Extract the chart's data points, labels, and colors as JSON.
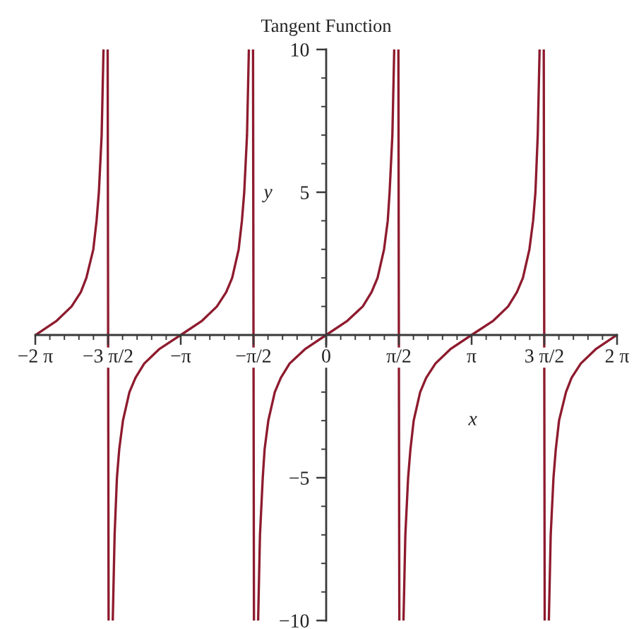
{
  "chart_data": {
    "type": "line",
    "title": "Tangent Function",
    "xlabel": "x",
    "ylabel": "y",
    "line_style": "solid",
    "x": [
      -6.28,
      -5.82,
      -5.5,
      -5.3,
      -5.18,
      -5.03,
      -4.96,
      -4.91,
      -4.85,
      -4.81,
      -4.76,
      -4.72,
      -4.7,
      -4.66,
      -4.61,
      -4.57,
      -4.52,
      -4.47,
      -4.39,
      -4.25,
      -4.12,
      -3.93,
      -3.61,
      -3.14,
      -2.68,
      -2.36,
      -2.16,
      -2.03,
      -1.89,
      -1.82,
      -1.77,
      -1.71,
      -1.67,
      -1.62,
      -1.58,
      -1.56,
      -1.52,
      -1.47,
      -1.43,
      -1.37,
      -1.33,
      -1.25,
      -1.11,
      -0.98,
      -0.79,
      -0.46,
      0,
      0.46,
      0.79,
      0.98,
      1.11,
      1.25,
      1.33,
      1.37,
      1.43,
      1.47,
      1.52,
      1.56,
      1.58,
      1.62,
      1.67,
      1.71,
      1.77,
      1.82,
      1.89,
      2.03,
      2.16,
      2.36,
      2.68,
      3.14,
      3.61,
      3.93,
      4.12,
      4.25,
      4.39,
      4.47,
      4.52,
      4.57,
      4.61,
      4.66,
      4.7,
      4.72,
      4.76,
      4.81,
      4.85,
      4.91,
      4.96,
      5.03,
      5.18,
      5.3,
      5.5,
      5.82,
      6.28
    ],
    "series": [
      {
        "color": "#8e1b2e",
        "values": [
          0,
          0.5,
          1,
          1.5,
          2,
          3,
          4,
          5,
          7,
          10,
          null,
          10,
          -10,
          null,
          -10,
          -7,
          -5,
          -4,
          -3,
          -2,
          -1.5,
          -1,
          -0.5,
          0,
          0.5,
          1,
          1.5,
          2,
          3,
          4,
          5,
          7,
          10,
          null,
          10,
          -10,
          null,
          -10,
          -7,
          -5,
          -4,
          -3,
          -2,
          -1.5,
          -1,
          -0.5,
          0,
          0.5,
          1,
          1.5,
          2,
          3,
          4,
          5,
          7,
          10,
          null,
          10,
          -10,
          null,
          -10,
          -7,
          -5,
          -4,
          -3,
          -2,
          -1.5,
          -1,
          -0.5,
          0,
          0.5,
          1,
          1.5,
          2,
          3,
          4,
          5,
          7,
          10,
          null,
          10,
          -10,
          null,
          -10,
          -7,
          -5,
          -4,
          -3,
          -2,
          -1.5,
          -1,
          -0.5,
          0
        ]
      }
    ],
    "xlim": [
      -6.2832,
      6.2832
    ],
    "ylim": [
      -10,
      10
    ],
    "xticks": [
      {
        "value": -6.2832,
        "label": "−2 π"
      },
      {
        "value": -5.969,
        "label": null
      },
      {
        "value": -5.6549,
        "label": null
      },
      {
        "value": -5.3407,
        "label": null
      },
      {
        "value": -5.0265,
        "label": null
      },
      {
        "value": -4.7124,
        "label": "−3 π/2"
      },
      {
        "value": -4.3982,
        "label": null
      },
      {
        "value": -4.0841,
        "label": null
      },
      {
        "value": -3.7699,
        "label": null
      },
      {
        "value": -3.4558,
        "label": null
      },
      {
        "value": -3.1416,
        "label": "−π"
      },
      {
        "value": -2.8274,
        "label": null
      },
      {
        "value": -2.5133,
        "label": null
      },
      {
        "value": -2.1991,
        "label": null
      },
      {
        "value": -1.885,
        "label": null
      },
      {
        "value": -1.5708,
        "label": "−π/2"
      },
      {
        "value": -1.2566,
        "label": null
      },
      {
        "value": -0.9425,
        "label": null
      },
      {
        "value": -0.6283,
        "label": null
      },
      {
        "value": -0.3142,
        "label": null
      },
      0,
      {
        "value": 0.3142,
        "label": null
      },
      {
        "value": 0.6283,
        "label": null
      },
      {
        "value": 0.9425,
        "label": null
      },
      {
        "value": 1.2566,
        "label": null
      },
      {
        "value": 1.5708,
        "label": "π/2"
      },
      {
        "value": 1.885,
        "label": null
      },
      {
        "value": 2.1991,
        "label": null
      },
      {
        "value": 2.5133,
        "label": null
      },
      {
        "value": 2.8274,
        "label": null
      },
      {
        "value": 3.1416,
        "label": "π"
      },
      {
        "value": 3.4558,
        "label": null
      },
      {
        "value": 3.7699,
        "label": null
      },
      {
        "value": 4.0841,
        "label": null
      },
      {
        "value": 4.3982,
        "label": null
      },
      {
        "value": 4.7124,
        "label": "3 π/2"
      },
      {
        "value": 5.0265,
        "label": null
      },
      {
        "value": 5.3407,
        "label": null
      },
      {
        "value": 5.6549,
        "label": null
      },
      {
        "value": 5.969,
        "label": null
      },
      {
        "value": 6.2832,
        "label": "2 π"
      }
    ],
    "yticks": [
      {
        "value": -10,
        "label": "−10"
      },
      {
        "value": -9,
        "label": null
      },
      {
        "value": -8,
        "label": null
      },
      {
        "value": -7,
        "label": null
      },
      {
        "value": -6,
        "label": null
      },
      {
        "value": -5,
        "label": "−5"
      },
      {
        "value": -4,
        "label": null
      },
      {
        "value": -3,
        "label": null
      },
      {
        "value": -2,
        "label": null
      },
      {
        "value": -1,
        "label": null
      },
      {
        "value": 1,
        "label": null
      },
      {
        "value": 2,
        "label": null
      },
      {
        "value": 3,
        "label": null
      },
      {
        "value": 4,
        "label": null
      },
      5,
      {
        "value": 6,
        "label": null
      },
      {
        "value": 7,
        "label": null
      },
      {
        "value": 8,
        "label": null
      },
      {
        "value": 9,
        "label": null
      },
      10
    ]
  }
}
